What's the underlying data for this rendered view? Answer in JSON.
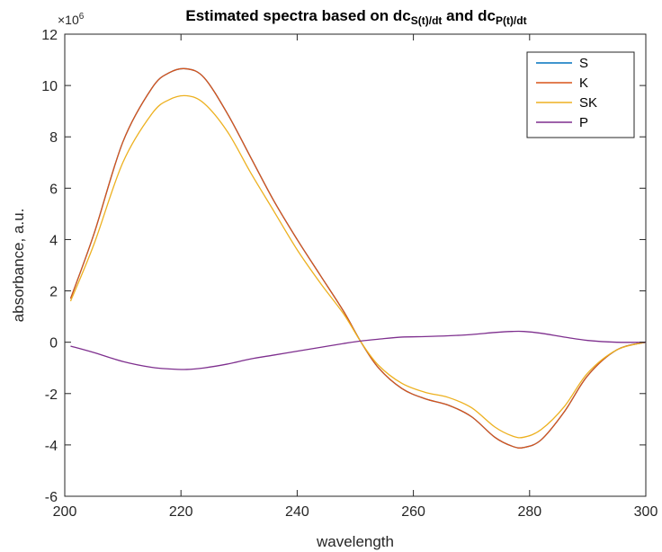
{
  "chart_data": {
    "type": "line",
    "title": {
      "parts": [
        {
          "text": "Estimated spectra based on dc",
          "sub": false
        },
        {
          "text": "S(t)/dt",
          "sub": true
        },
        {
          "text": " and dc",
          "sub": false
        },
        {
          "text": "P(t)/dt",
          "sub": true
        }
      ]
    },
    "xlabel": "wavelength",
    "ylabel": "absorbance, a.u.",
    "y_exponent_label": "×10",
    "y_exponent_power": "6",
    "xlim": [
      200,
      300
    ],
    "ylim": [
      -6,
      12
    ],
    "xticks": [
      200,
      220,
      240,
      260,
      280,
      300
    ],
    "yticks": [
      -6,
      -4,
      -2,
      0,
      2,
      4,
      6,
      8,
      10,
      12
    ],
    "xtick_labels": [
      "200",
      "220",
      "240",
      "260",
      "280",
      "300"
    ],
    "ytick_labels": [
      "-6",
      "-4",
      "-2",
      "0",
      "2",
      "4",
      "6",
      "8",
      "10",
      "12"
    ],
    "grid": false,
    "legend_position": "top-right",
    "x": [
      201,
      205,
      210,
      215,
      218,
      221,
      224,
      228,
      232,
      236,
      240,
      244,
      248,
      251,
      254,
      258,
      262,
      266,
      270,
      274,
      277,
      279,
      282,
      286,
      290,
      295,
      300
    ],
    "series": [
      {
        "name": "S",
        "color": "#0072BD",
        "values": [
          1.7,
          4.2,
          7.8,
          9.9,
          10.5,
          10.65,
          10.3,
          8.9,
          7.2,
          5.5,
          4.0,
          2.6,
          1.2,
          0.0,
          -1.0,
          -1.8,
          -2.2,
          -2.45,
          -2.9,
          -3.7,
          -4.05,
          -4.1,
          -3.8,
          -2.7,
          -1.3,
          -0.3,
          0.0
        ]
      },
      {
        "name": "K",
        "color": "#D95319",
        "values": [
          1.7,
          4.2,
          7.8,
          9.9,
          10.5,
          10.65,
          10.3,
          8.9,
          7.2,
          5.5,
          4.0,
          2.6,
          1.2,
          0.0,
          -1.0,
          -1.8,
          -2.2,
          -2.45,
          -2.9,
          -3.7,
          -4.05,
          -4.1,
          -3.8,
          -2.7,
          -1.3,
          -0.3,
          0.0
        ]
      },
      {
        "name": "SK",
        "color": "#EDB120",
        "values": [
          1.6,
          3.8,
          7.0,
          8.9,
          9.45,
          9.6,
          9.3,
          8.2,
          6.6,
          5.1,
          3.6,
          2.3,
          1.1,
          0.0,
          -0.9,
          -1.6,
          -1.95,
          -2.15,
          -2.55,
          -3.3,
          -3.65,
          -3.7,
          -3.4,
          -2.5,
          -1.2,
          -0.3,
          0.0
        ]
      },
      {
        "name": "P",
        "color": "#7E2F8E",
        "values": [
          -0.15,
          -0.4,
          -0.75,
          -0.98,
          -1.04,
          -1.06,
          -1.0,
          -0.85,
          -0.65,
          -0.5,
          -0.35,
          -0.2,
          -0.05,
          0.05,
          0.12,
          0.2,
          0.22,
          0.25,
          0.3,
          0.38,
          0.42,
          0.42,
          0.35,
          0.2,
          0.07,
          0.0,
          0.0
        ]
      }
    ]
  }
}
